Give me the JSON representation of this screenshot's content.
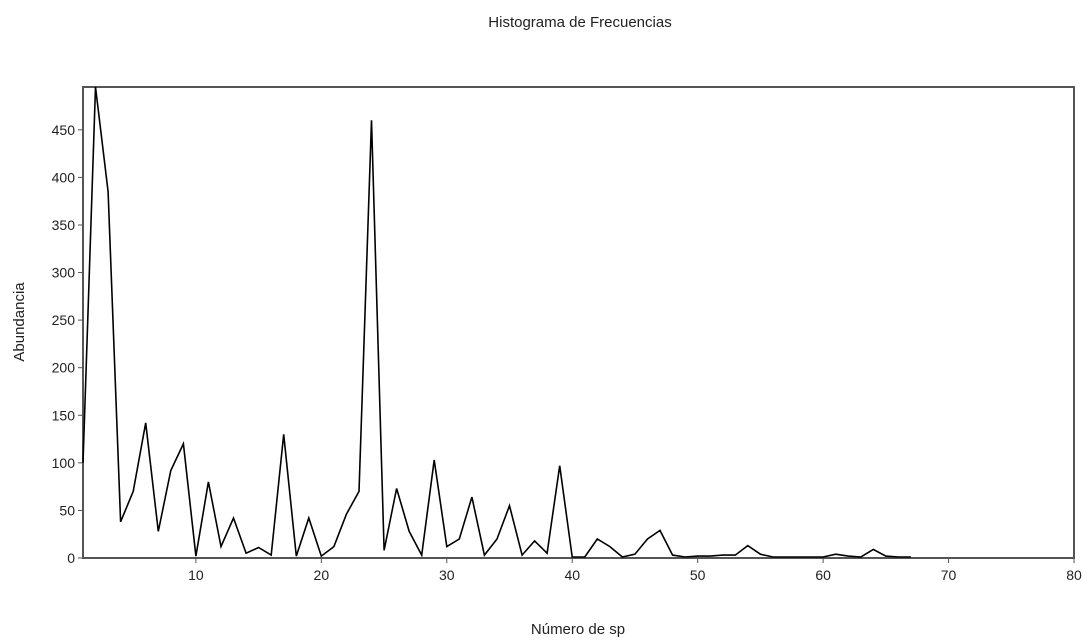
{
  "chart_data": {
    "type": "line",
    "title": "Histograma de Frecuencias",
    "xlabel": "Número de sp",
    "ylabel": "Abundancia",
    "xlim": [
      1,
      80
    ],
    "ylim": [
      0,
      495
    ],
    "x_ticks": [
      10,
      20,
      30,
      40,
      50,
      60,
      70,
      80
    ],
    "y_ticks": [
      0,
      50,
      100,
      150,
      200,
      250,
      300,
      350,
      400,
      450
    ],
    "grid": false,
    "series": [
      {
        "color": "#000000",
        "x": [
          1,
          2,
          3,
          4,
          5,
          6,
          7,
          8,
          9,
          10,
          11,
          12,
          13,
          14,
          15,
          16,
          17,
          18,
          19,
          20,
          21,
          22,
          23,
          24,
          25,
          26,
          27,
          28,
          29,
          30,
          31,
          32,
          33,
          34,
          35,
          36,
          37,
          38,
          39,
          40,
          41,
          42,
          43,
          44,
          45,
          46,
          47,
          48,
          49,
          50,
          51,
          52,
          53,
          54,
          55,
          56,
          57,
          58,
          59,
          60,
          61,
          62,
          63,
          64,
          65,
          66,
          67
        ],
        "y": [
          100,
          495,
          385,
          38,
          70,
          142,
          28,
          92,
          120,
          2,
          80,
          12,
          42,
          5,
          11,
          3,
          130,
          2,
          42,
          2,
          12,
          46,
          70,
          460,
          8,
          73,
          28,
          3,
          103,
          12,
          20,
          64,
          3,
          20,
          55,
          3,
          18,
          5,
          97,
          1,
          1,
          20,
          12,
          1,
          4,
          20,
          29,
          3,
          1,
          2,
          2,
          3,
          3,
          13,
          4,
          1,
          1,
          1,
          1,
          1,
          4,
          2,
          1,
          9,
          2,
          1,
          1
        ]
      }
    ]
  }
}
